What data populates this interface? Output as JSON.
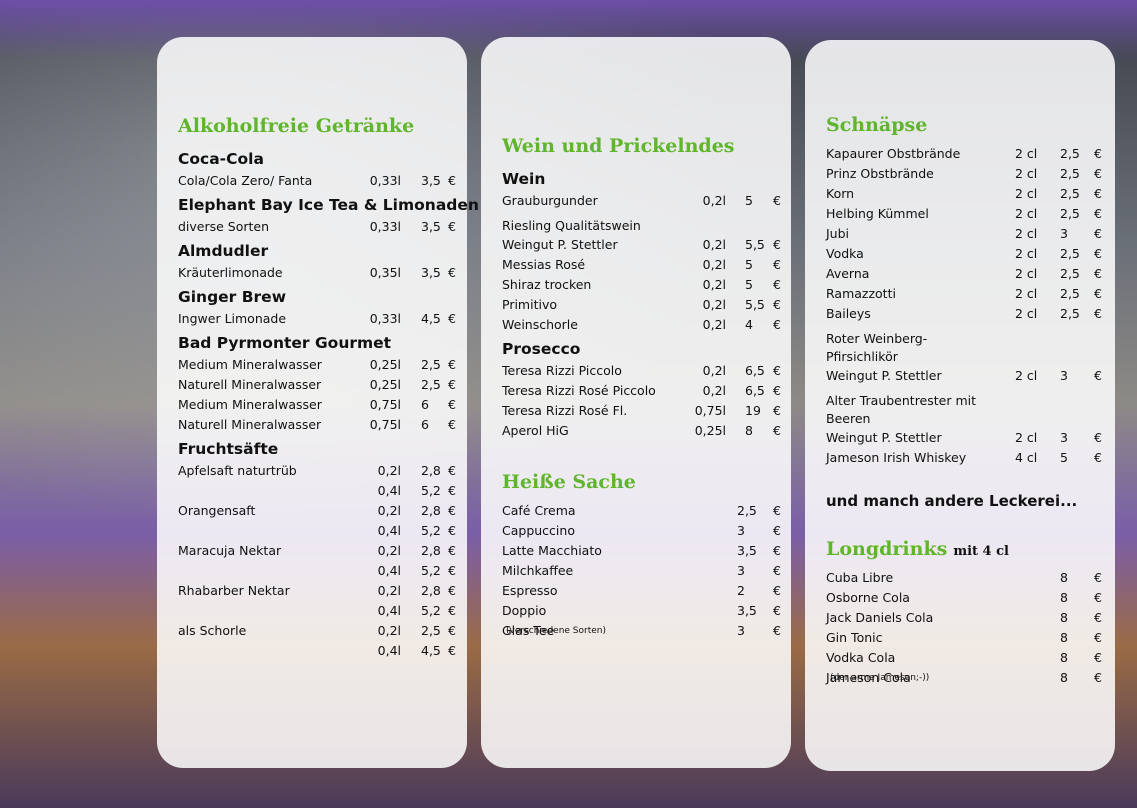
{
  "panels": [
    {
      "items": [
        {
          "h": "Alkoholfreie Getränke"
        },
        {
          "s": "Coca-Cola"
        },
        {
          "n": "Cola/Cola Zero/ Fanta",
          "size": "0,33l",
          "price": "3,5",
          "cur": "€"
        },
        {
          "s": "Elephant Bay Ice Tea & Limonaden"
        },
        {
          "n": "diverse Sorten",
          "size": "0,33l",
          "price": "3,5",
          "cur": "€"
        },
        {
          "s": "Almdudler"
        },
        {
          "n": "Kräuterlimonade",
          "size": "0,35l",
          "price": "3,5",
          "cur": "€"
        },
        {
          "s": "Ginger Brew"
        },
        {
          "n": "Ingwer Limonade",
          "size": "0,33l",
          "price": "4,5",
          "cur": "€"
        },
        {
          "s": "Bad Pyrmonter Gourmet"
        },
        {
          "n": "Medium Mineralwasser",
          "size": "0,25l",
          "price": "2,5",
          "cur": "€"
        },
        {
          "n": "Naturell Mineralwasser",
          "size": "0,25l",
          "price": "2,5",
          "cur": "€"
        },
        {
          "n": "Medium Mineralwasser",
          "size": "0,75l",
          "price": "6",
          "cur": "€"
        },
        {
          "n": "Naturell Mineralwasser",
          "size": "0,75l",
          "price": "6",
          "cur": "€"
        },
        {
          "s": "Fruchtsäfte"
        },
        {
          "n": "Apfelsaft naturtrüb",
          "size": "0,2l",
          "price": "2,8",
          "cur": "€"
        },
        {
          "size": "0,4l",
          "price": "5,2",
          "cur": "€"
        },
        {
          "n": "Orangensaft",
          "size": "0,2l",
          "price": "2,8",
          "cur": "€"
        },
        {
          "size": "0,4l",
          "price": "5,2",
          "cur": "€"
        },
        {
          "n": "Maracuja Nektar",
          "size": "0,2l",
          "price": "2,8",
          "cur": "€"
        },
        {
          "size": "0,4l",
          "price": "5,2",
          "cur": "€"
        },
        {
          "n": "Rhabarber Nektar",
          "size": "0,2l",
          "price": "2,8",
          "cur": "€"
        },
        {
          "size": "0,4l",
          "price": "5,2",
          "cur": "€"
        },
        {
          "n": "als Schorle",
          "size": "0,2l",
          "price": "2,5",
          "cur": "€"
        },
        {
          "size": "0,4l",
          "price": "4,5",
          "cur": "€"
        }
      ]
    },
    {
      "items": [
        {
          "h": "Wein und Prickelndes"
        },
        {
          "s": "Wein"
        },
        {
          "n": "Grauburgunder",
          "size": "0,2l",
          "price": "5",
          "cur": "€"
        },
        {
          "d": "Riesling Qualitätswein"
        },
        {
          "n": "Weingut P. Stettler",
          "size": "0,2l",
          "price": "5,5",
          "cur": "€"
        },
        {
          "n": "Messias Rosé",
          "size": "0,2l",
          "price": "5",
          "cur": "€"
        },
        {
          "n": "Shiraz trocken",
          "size": "0,2l",
          "price": "5",
          "cur": "€"
        },
        {
          "n": "Primitivo",
          "size": "0,2l",
          "price": "5,5",
          "cur": "€"
        },
        {
          "n": "Weinschorle",
          "size": "0,2l",
          "price": "4",
          "cur": "€"
        },
        {
          "s": "Prosecco"
        },
        {
          "n": "Teresa Rizzi Piccolo",
          "size": "0,2l",
          "price": "6,5",
          "cur": "€"
        },
        {
          "n": "Teresa Rizzi Rosé Piccolo",
          "size": "0,2l",
          "price": "6,5",
          "cur": "€"
        },
        {
          "n": "Teresa Rizzi Rosé Fl.",
          "size": "0,75l",
          "price": "19",
          "cur": "€"
        },
        {
          "n": "Aperol HiG",
          "size": "0,25l",
          "price": "8",
          "cur": "€"
        },
        {
          "h": "Heiße Sache"
        },
        {
          "n": "Café Crema",
          "price": "2,5",
          "cur": "€"
        },
        {
          "n": "Cappuccino",
          "price": "3",
          "cur": "€"
        },
        {
          "n": "Latte Macchiato",
          "price": "3,5",
          "cur": "€"
        },
        {
          "n": "Milchkaffee",
          "price": "3",
          "cur": "€"
        },
        {
          "n": "Espresso",
          "price": "2",
          "cur": "€"
        },
        {
          "n": "Doppio",
          "price": "3,5",
          "cur": "€"
        },
        {
          "n": "Glas Tee",
          "note": "(verschiedene Sorten)",
          "price": "3",
          "cur": "€"
        }
      ]
    },
    {
      "items": [
        {
          "h": "Schnäpse"
        },
        {
          "n": "Kapaurer Obstbrände",
          "size": "2 cl",
          "price": "2,5",
          "cur": "€"
        },
        {
          "n": "Prinz Obstbrände",
          "size": "2 cl",
          "price": "2,5",
          "cur": "€"
        },
        {
          "n": "Korn",
          "size": "2 cl",
          "price": "2,5",
          "cur": "€"
        },
        {
          "n": "Helbing Kümmel",
          "size": "2 cl",
          "price": "2,5",
          "cur": "€"
        },
        {
          "n": "Jubi",
          "size": "2 cl",
          "price": "3",
          "cur": "€"
        },
        {
          "n": "Vodka",
          "size": "2 cl",
          "price": "2,5",
          "cur": "€"
        },
        {
          "n": "Averna",
          "size": "2 cl",
          "price": "2,5",
          "cur": "€"
        },
        {
          "n": "Ramazzotti",
          "size": "2 cl",
          "price": "2,5",
          "cur": "€"
        },
        {
          "n": "Baileys",
          "size": "2 cl",
          "price": "2,5",
          "cur": "€"
        },
        {
          "d": "Roter Weinberg-"
        },
        {
          "d": "Pfirsichlikör"
        },
        {
          "n": "Weingut P. Stettler",
          "size": "2 cl",
          "price": "3",
          "cur": "€"
        },
        {
          "d": "Alter Traubentrester mit"
        },
        {
          "d": "Beeren"
        },
        {
          "n": "Weingut P. Stettler",
          "size": "2 cl",
          "price": "3",
          "cur": "€"
        },
        {
          "n": "Jameson Irish Whiskey",
          "size": "4 cl",
          "price": "5",
          "cur": "€"
        },
        {
          "b": "und manch andere Leckerei..."
        },
        {
          "h": "Longdrinks",
          "note": "mit 4 cl"
        },
        {
          "n": "Cuba Libre",
          "price": "8",
          "cur": "€"
        },
        {
          "n": "Osborne Cola",
          "price": "8",
          "cur": "€"
        },
        {
          "n": "Jack Daniels Cola",
          "price": "8",
          "cur": "€"
        },
        {
          "n": "Gin Tonic",
          "price": "8",
          "cur": "€"
        },
        {
          "n": "Vodka Cola",
          "price": "8",
          "cur": "€"
        },
        {
          "n": "Jameson Cola",
          "note": "(der arme Jameson;-))",
          "price": "8",
          "cur": "€"
        }
      ]
    }
  ]
}
